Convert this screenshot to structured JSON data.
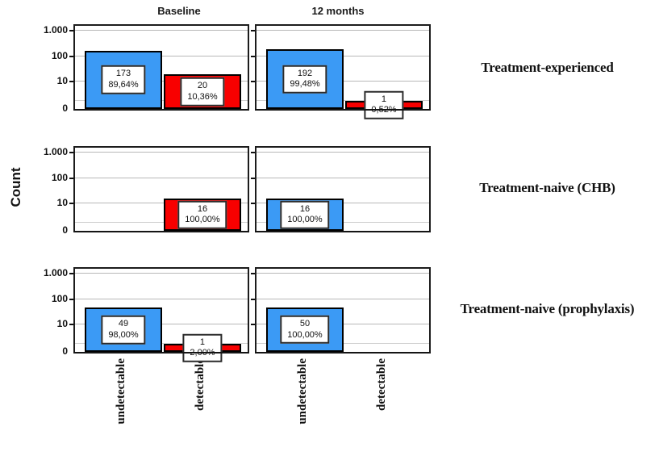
{
  "chart_data": {
    "type": "bar",
    "title": "",
    "ylabel": "Count",
    "y_scale": "log",
    "grid": true,
    "col_headers": [
      "Baseline",
      "12 months"
    ],
    "row_headers": [
      "Treatment-experienced",
      "Treatment-naive (CHB)",
      "Treatment-naive (prophylaxis)"
    ],
    "categories": [
      "undetectable",
      "detectable"
    ],
    "y_ticks": [
      {
        "label": "1.000",
        "value": 1000
      },
      {
        "label": "100",
        "value": 100
      },
      {
        "label": "10",
        "value": 10
      },
      {
        "label": "0",
        "value": 0
      }
    ],
    "colors": {
      "undetectable_bar": "#3b9af5",
      "detectable_bar": "#f80000",
      "gridline": "#b8b8b8",
      "panel_border": "#1c1c1c"
    },
    "panels": [
      {
        "row_header": "Treatment-experienced",
        "col_header": "Baseline",
        "bars": [
          {
            "category": "undetectable",
            "count": 173,
            "percent": "89,64%"
          },
          {
            "category": "detectable",
            "count": 20,
            "percent": "10,36%"
          }
        ]
      },
      {
        "row_header": "Treatment-experienced",
        "col_header": "12 months",
        "bars": [
          {
            "category": "undetectable",
            "count": 192,
            "percent": "99,48%"
          },
          {
            "category": "detectable",
            "count": 1,
            "percent": "0,52%"
          }
        ]
      },
      {
        "row_header": "Treatment-naive (CHB)",
        "col_header": "Baseline",
        "bars": [
          {
            "category": "detectable",
            "count": 16,
            "percent": "100,00%"
          }
        ]
      },
      {
        "row_header": "Treatment-naive (CHB)",
        "col_header": "12 months",
        "bars": [
          {
            "category": "undetectable",
            "count": 16,
            "percent": "100,00%"
          }
        ]
      },
      {
        "row_header": "Treatment-naive (prophylaxis)",
        "col_header": "Baseline",
        "bars": [
          {
            "category": "undetectable",
            "count": 49,
            "percent": "98,00%"
          },
          {
            "category": "detectable",
            "count": 1,
            "percent": "2,00%"
          }
        ]
      },
      {
        "row_header": "Treatment-naive (prophylaxis)",
        "col_header": "12 months",
        "bars": [
          {
            "category": "undetectable",
            "count": 50,
            "percent": "100,00%"
          }
        ]
      }
    ]
  }
}
